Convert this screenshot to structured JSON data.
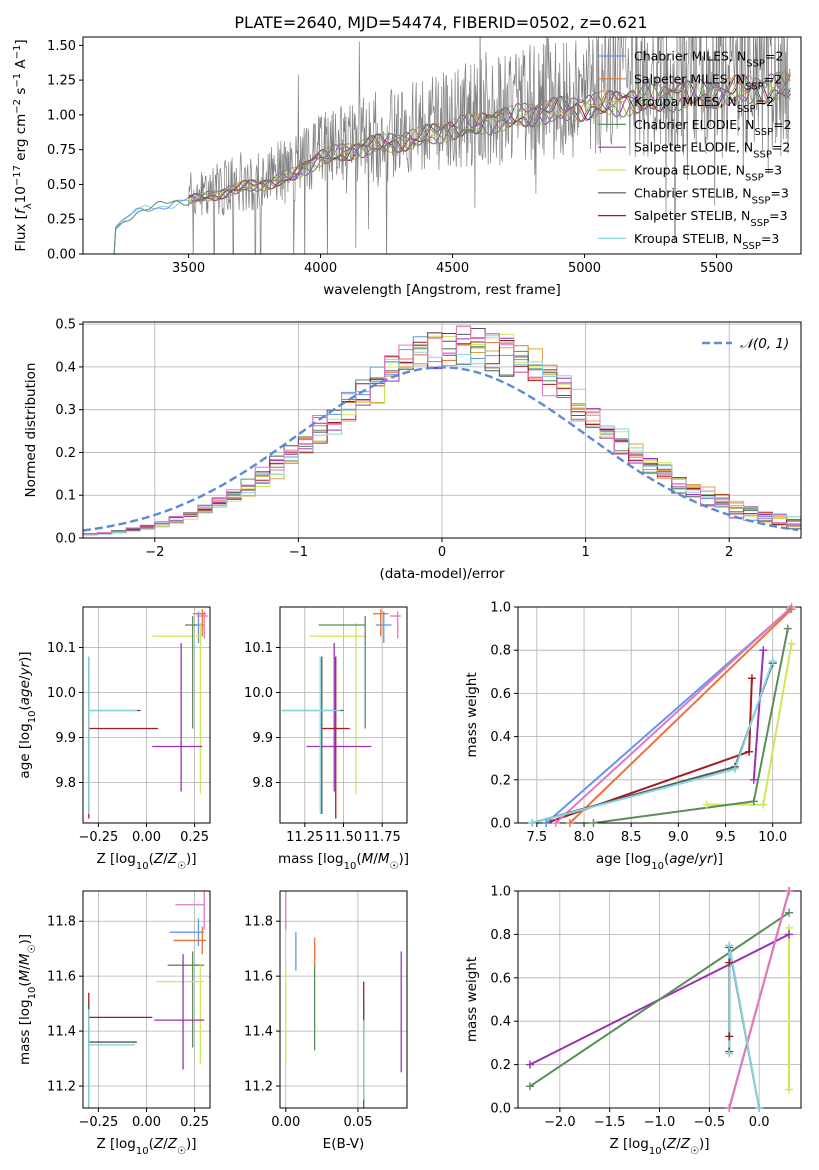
{
  "colors": {
    "cm": "#6495ED",
    "sm": "#E8743B",
    "km": "#D9A441",
    "ce": "#5B8C5A",
    "se": "#9B30B5",
    "ke": "#CDE85A",
    "cs": "#555555",
    "ss": "#A51C1C",
    "ks": "#86D4E0",
    "gray": "#808080",
    "pink": "#E377C2",
    "normal": "#5B8AD6"
  },
  "chart_data": [
    {
      "id": "spectrum",
      "type": "line",
      "title": "PLATE=2640, MJD=54474, FIBERID=0502, z=0.621",
      "xlabel": "wavelength [Angstrom, rest frame]",
      "ylabel": "Flux [f_λ10^−17 erg cm^−2 s^−1 A^−1]",
      "xlim": [
        3100,
        5820
      ],
      "ylim": [
        0,
        1.56
      ],
      "xticks": [
        3500,
        4000,
        4500,
        5000,
        5500
      ],
      "yticks": [
        0.0,
        0.25,
        0.5,
        0.75,
        1.0,
        1.25,
        1.5
      ],
      "legend_placement": "upper right",
      "legend": [
        {
          "label": "Chabrier MILES, N_SSP=2",
          "color_key": "cm"
        },
        {
          "label": "Salpeter MILES, N_SSP=2",
          "color_key": "sm"
        },
        {
          "label": "Kroupa MILES, N_SSP=2",
          "color_key": "km"
        },
        {
          "label": "Chabrier ELODIE, N_SSP=2",
          "color_key": "ce"
        },
        {
          "label": "Salpeter ELODIE, N_SSP=2",
          "color_key": "se"
        },
        {
          "label": "Kroupa ELODIE, N_SSP=3",
          "color_key": "ke"
        },
        {
          "label": "Chabrier STELIB, N_SSP=3",
          "color_key": "cs"
        },
        {
          "label": "Salpeter STELIB, N_SSP=3",
          "color_key": "ss"
        },
        {
          "label": "Kroupa STELIB, N_SSP=3",
          "color_key": "ks"
        }
      ],
      "continuum": {
        "x": [
          3220,
          3300,
          3400,
          3500,
          3600,
          3700,
          3800,
          3900,
          4000,
          4100,
          4200,
          4300,
          4400,
          4500,
          4600,
          4700,
          4800,
          4900,
          5000,
          5100,
          5200,
          5300,
          5400,
          5500,
          5600,
          5700
        ],
        "y": [
          0.2,
          0.33,
          0.38,
          0.42,
          0.46,
          0.52,
          0.55,
          0.62,
          0.75,
          0.8,
          0.85,
          0.88,
          0.92,
          0.98,
          1.02,
          1.05,
          1.1,
          1.12,
          1.15,
          1.17,
          1.2,
          1.22,
          1.24,
          1.26,
          1.28,
          1.3
        ]
      },
      "data_start": 3500
    },
    {
      "id": "residuals",
      "type": "histogram",
      "xlabel": "(data-model)/error",
      "ylabel": "Normed distribution",
      "xlim": [
        -2.5,
        2.5
      ],
      "ylim": [
        0,
        0.505
      ],
      "xticks": [
        -2,
        -1,
        0,
        1,
        2
      ],
      "yticks": [
        0.0,
        0.1,
        0.2,
        0.3,
        0.4,
        0.5
      ],
      "legend_placement": "upper right",
      "normal_label": "𝒩(0, 1)",
      "bin_width": 0.1,
      "base_peak": 0.4
    },
    {
      "id": "Z-age",
      "type": "errorbar",
      "xlabel": "Z [log10(Z/Z☉)]",
      "ylabel": "age  [log10(age/yr)]",
      "xlim": [
        -0.33,
        0.33
      ],
      "ylim": [
        9.71,
        10.19
      ],
      "xticks": [
        -0.25,
        0.0,
        0.25
      ],
      "yticks": [
        9.8,
        9.9,
        10.0,
        10.1
      ],
      "points": [
        {
          "c": "cm",
          "x": 0.27,
          "xe": [
            0.03,
            0.03
          ],
          "y": 10.15,
          "ye": [
            0.04,
            0.03
          ]
        },
        {
          "c": "pink",
          "x": 0.3,
          "xe": [
            0.04,
            0.02
          ],
          "y": 10.17,
          "ye": [
            0.05,
            0.01
          ]
        },
        {
          "c": "sm",
          "x": 0.29,
          "xe": [
            0.05,
            0.02
          ],
          "y": 10.175,
          "ye": [
            0.05,
            0.01
          ]
        },
        {
          "c": "ke",
          "x": 0.28,
          "xe": [
            0.25,
            0.02
          ],
          "y": 10.125,
          "ye": [
            0.35,
            0.03
          ]
        },
        {
          "c": "ce",
          "x": 0.24,
          "xe": [
            0.04,
            0.02
          ],
          "y": 10.15,
          "ye": [
            0.23,
            0.02
          ]
        },
        {
          "c": "se",
          "x": 0.18,
          "xe": [
            0.15,
            0.11
          ],
          "y": 9.88,
          "ye": [
            0.1,
            0.23
          ]
        },
        {
          "c": "ss",
          "x": -0.3,
          "xe": [
            0.0,
            0.36
          ],
          "y": 9.92,
          "ye": [
            0.2,
            0.16
          ]
        },
        {
          "c": "cs",
          "x": -0.3,
          "xe": [
            0.0,
            0.27
          ],
          "y": 9.96,
          "ye": [
            0.23,
            0.12
          ]
        },
        {
          "c": "ks",
          "x": -0.3,
          "xe": [
            0.0,
            0.25
          ],
          "y": 9.96,
          "ye": [
            0.23,
            0.12
          ]
        }
      ]
    },
    {
      "id": "mass-age",
      "type": "errorbar",
      "xlabel": "mass [log10(M/M☉)]",
      "ylabel": "",
      "xlim": [
        11.09,
        11.91
      ],
      "ylim": [
        9.71,
        10.19
      ],
      "xticks": [
        11.25,
        11.5,
        11.75
      ],
      "yticks": [
        9.8,
        9.9,
        10.0,
        10.1
      ],
      "points": [
        {
          "c": "cm",
          "x": 11.76,
          "xe": [
            0.05,
            0.05
          ],
          "y": 10.15,
          "ye": [
            0.04,
            0.03
          ]
        },
        {
          "c": "pink",
          "x": 11.85,
          "xe": [
            0.05,
            0.02
          ],
          "y": 10.17,
          "ye": [
            0.05,
            0.01
          ]
        },
        {
          "c": "sm",
          "x": 11.74,
          "xe": [
            0.05,
            0.05
          ],
          "y": 10.175,
          "ye": [
            0.05,
            0.01
          ]
        },
        {
          "c": "ke",
          "x": 11.58,
          "xe": [
            0.3,
            0.06
          ],
          "y": 10.125,
          "ye": [
            0.35,
            0.03
          ]
        },
        {
          "c": "ce",
          "x": 11.64,
          "xe": [
            0.3,
            0.0
          ],
          "y": 10.15,
          "ye": [
            0.23,
            0.02
          ]
        },
        {
          "c": "se",
          "x": 11.44,
          "xe": [
            0.18,
            0.24
          ],
          "y": 9.88,
          "ye": [
            0.1,
            0.23
          ]
        },
        {
          "c": "ss",
          "x": 11.45,
          "xe": [
            0.09,
            0.09
          ],
          "y": 9.92,
          "ye": [
            0.2,
            0.16
          ]
        },
        {
          "c": "cs",
          "x": 11.36,
          "xe": [
            0.26,
            0.14
          ],
          "y": 9.96,
          "ye": [
            0.23,
            0.12
          ]
        },
        {
          "c": "ks",
          "x": 11.35,
          "xe": [
            0.25,
            0.13
          ],
          "y": 9.96,
          "ye": [
            0.23,
            0.12
          ]
        }
      ]
    },
    {
      "id": "age-weight",
      "type": "line",
      "xlabel": "age  [log10(age/yr)]",
      "ylabel": "mass weight",
      "xlim": [
        7.3,
        10.3
      ],
      "ylim": [
        0,
        1
      ],
      "xticks": [
        7.5,
        8.0,
        8.5,
        9.0,
        9.5,
        10.0
      ],
      "yticks": [
        0.0,
        0.2,
        0.4,
        0.6,
        0.8,
        1.0
      ],
      "series": [
        {
          "c": "ke",
          "x": [
            9.3,
            9.9,
            10.2
          ],
          "y": [
            0.085,
            0.085,
            0.83
          ]
        },
        {
          "c": "se",
          "x": [
            9.8,
            9.9
          ],
          "y": [
            0.2,
            0.8
          ]
        },
        {
          "c": "ss",
          "x": [
            7.6,
            9.75,
            9.78
          ],
          "y": [
            0.0,
            0.33,
            0.67
          ]
        },
        {
          "c": "ce",
          "x": [
            8.1,
            9.8,
            10.16
          ],
          "y": [
            0.0,
            0.1,
            0.9
          ]
        },
        {
          "c": "cm",
          "x": [
            7.6,
            10.18
          ],
          "y": [
            0.0,
            0.99
          ]
        },
        {
          "c": "pink",
          "x": [
            7.7,
            10.2
          ],
          "y": [
            0.0,
            1.0
          ]
        },
        {
          "c": "sm",
          "x": [
            7.85,
            10.2
          ],
          "y": [
            0.0,
            0.99
          ]
        },
        {
          "c": "cs",
          "x": [
            7.45,
            9.6,
            10.0
          ],
          "y": [
            0.0,
            0.26,
            0.74
          ]
        },
        {
          "c": "ks",
          "x": [
            7.45,
            9.6,
            10.0
          ],
          "y": [
            0.0,
            0.25,
            0.75
          ]
        }
      ]
    },
    {
      "id": "Z-mass",
      "type": "errorbar",
      "xlabel": "Z [log10(Z/Z☉)]",
      "ylabel": "mass [log10(M/M☉)]",
      "xlim": [
        -0.33,
        0.33
      ],
      "ylim": [
        11.12,
        11.91
      ],
      "xticks": [
        -0.25,
        0.0,
        0.25
      ],
      "yticks": [
        11.2,
        11.4,
        11.6,
        11.8
      ],
      "points": [
        {
          "c": "pink",
          "x": 0.3,
          "xe": [
            0.15,
            0.0
          ],
          "y": 11.86,
          "ye": [
            0.09,
            0.05
          ]
        },
        {
          "c": "cm",
          "x": 0.27,
          "xe": [
            0.15,
            0.03
          ],
          "y": 11.76,
          "ye": [
            0.05,
            0.05
          ]
        },
        {
          "c": "sm",
          "x": 0.29,
          "xe": [
            0.15,
            0.02
          ],
          "y": 11.73,
          "ye": [
            0.05,
            0.05
          ]
        },
        {
          "c": "ce",
          "x": 0.24,
          "xe": [
            0.13,
            0.06
          ],
          "y": 11.64,
          "ye": [
            0.3,
            0.05
          ]
        },
        {
          "c": "ke",
          "x": 0.28,
          "xe": [
            0.23,
            0.02
          ],
          "y": 11.58,
          "ye": [
            0.3,
            0.06
          ]
        },
        {
          "c": "se",
          "x": 0.19,
          "xe": [
            0.15,
            0.11
          ],
          "y": 11.44,
          "ye": [
            0.18,
            0.24
          ]
        },
        {
          "c": "ss",
          "x": -0.3,
          "xe": [
            0.0,
            0.33
          ],
          "y": 11.45,
          "ye": [
            0.09,
            0.09
          ]
        },
        {
          "c": "cs",
          "x": -0.3,
          "xe": [
            0.0,
            0.25
          ],
          "y": 11.36,
          "ye": [
            0.26,
            0.14
          ]
        },
        {
          "c": "ks",
          "x": -0.3,
          "xe": [
            0.0,
            0.24
          ],
          "y": 11.35,
          "ye": [
            0.25,
            0.13
          ]
        }
      ]
    },
    {
      "id": "ebv-mass",
      "type": "errorbar",
      "xlabel": "E(B-V)",
      "ylabel": "",
      "xlim": [
        -0.004,
        0.084
      ],
      "ylim": [
        11.12,
        11.91
      ],
      "xticks": [
        0.0,
        0.05
      ],
      "yticks": [
        11.2,
        11.4,
        11.6,
        11.8
      ],
      "points": [
        {
          "c": "pink",
          "x": 0.0,
          "xe": [
            0,
            0
          ],
          "y": 11.86,
          "ye": [
            0.09,
            0.05
          ]
        },
        {
          "c": "ke",
          "x": 0.0,
          "xe": [
            0,
            0
          ],
          "y": 11.58,
          "ye": [
            0.3,
            0.06
          ]
        },
        {
          "c": "cm",
          "x": 0.007,
          "xe": [
            0,
            0
          ],
          "y": 11.69,
          "ye": [
            0.07,
            0.07
          ]
        },
        {
          "c": "sm",
          "x": 0.02,
          "xe": [
            0,
            0
          ],
          "y": 11.69,
          "ye": [
            0.05,
            0.05
          ]
        },
        {
          "c": "ce",
          "x": 0.02,
          "xe": [
            0,
            0
          ],
          "y": 11.5,
          "ye": [
            0.17,
            0.14
          ]
        },
        {
          "c": "se",
          "x": 0.08,
          "xe": [
            0,
            0
          ],
          "y": 11.47,
          "ye": [
            0.22,
            0.22
          ]
        },
        {
          "c": "ss",
          "x": 0.054,
          "xe": [
            0,
            0
          ],
          "y": 11.48,
          "ye": [
            0.1,
            0.1
          ]
        },
        {
          "c": "cs",
          "x": 0.054,
          "xe": [
            0,
            0
          ],
          "y": 11.37,
          "ye": [
            0.25,
            0.14
          ]
        },
        {
          "c": "ks",
          "x": 0.054,
          "xe": [
            0,
            0
          ],
          "y": 11.3,
          "ye": [
            0.15,
            0.14
          ]
        }
      ]
    },
    {
      "id": "Z-weight",
      "type": "line",
      "xlabel": "Z [log10(Z/Z☉)]",
      "ylabel": "mass weight",
      "xlim": [
        -2.42,
        0.42
      ],
      "ylim": [
        0,
        1
      ],
      "xticks": [
        -2.0,
        -1.5,
        -1.0,
        -0.5,
        0.0
      ],
      "yticks": [
        0.0,
        0.2,
        0.4,
        0.6,
        0.8,
        1.0
      ],
      "series": [
        {
          "c": "ke",
          "x": [
            0.3,
            0.3
          ],
          "y": [
            0.085,
            0.83
          ]
        },
        {
          "c": "se",
          "x": [
            -2.3,
            0.3
          ],
          "y": [
            0.2,
            0.8
          ]
        },
        {
          "c": "ce",
          "x": [
            -2.3,
            0.3
          ],
          "y": [
            0.1,
            0.9
          ]
        },
        {
          "c": "ss",
          "x": [
            -0.3,
            -0.3
          ],
          "y": [
            0.33,
            0.67
          ]
        },
        {
          "c": "cm",
          "x": [
            -0.3,
            0.3
          ],
          "y": [
            0.0,
            1.0
          ]
        },
        {
          "c": "sm",
          "x": [
            -0.3,
            0.3
          ],
          "y": [
            0.0,
            1.0
          ]
        },
        {
          "c": "pink",
          "x": [
            -0.3,
            0.3
          ],
          "y": [
            0.0,
            1.0
          ]
        },
        {
          "c": "cs",
          "x": [
            -0.3,
            -0.3,
            0.0
          ],
          "y": [
            0.26,
            0.74,
            0.0
          ]
        },
        {
          "c": "ks",
          "x": [
            -0.3,
            -0.3,
            0.0
          ],
          "y": [
            0.25,
            0.75,
            0.0
          ]
        }
      ]
    }
  ]
}
